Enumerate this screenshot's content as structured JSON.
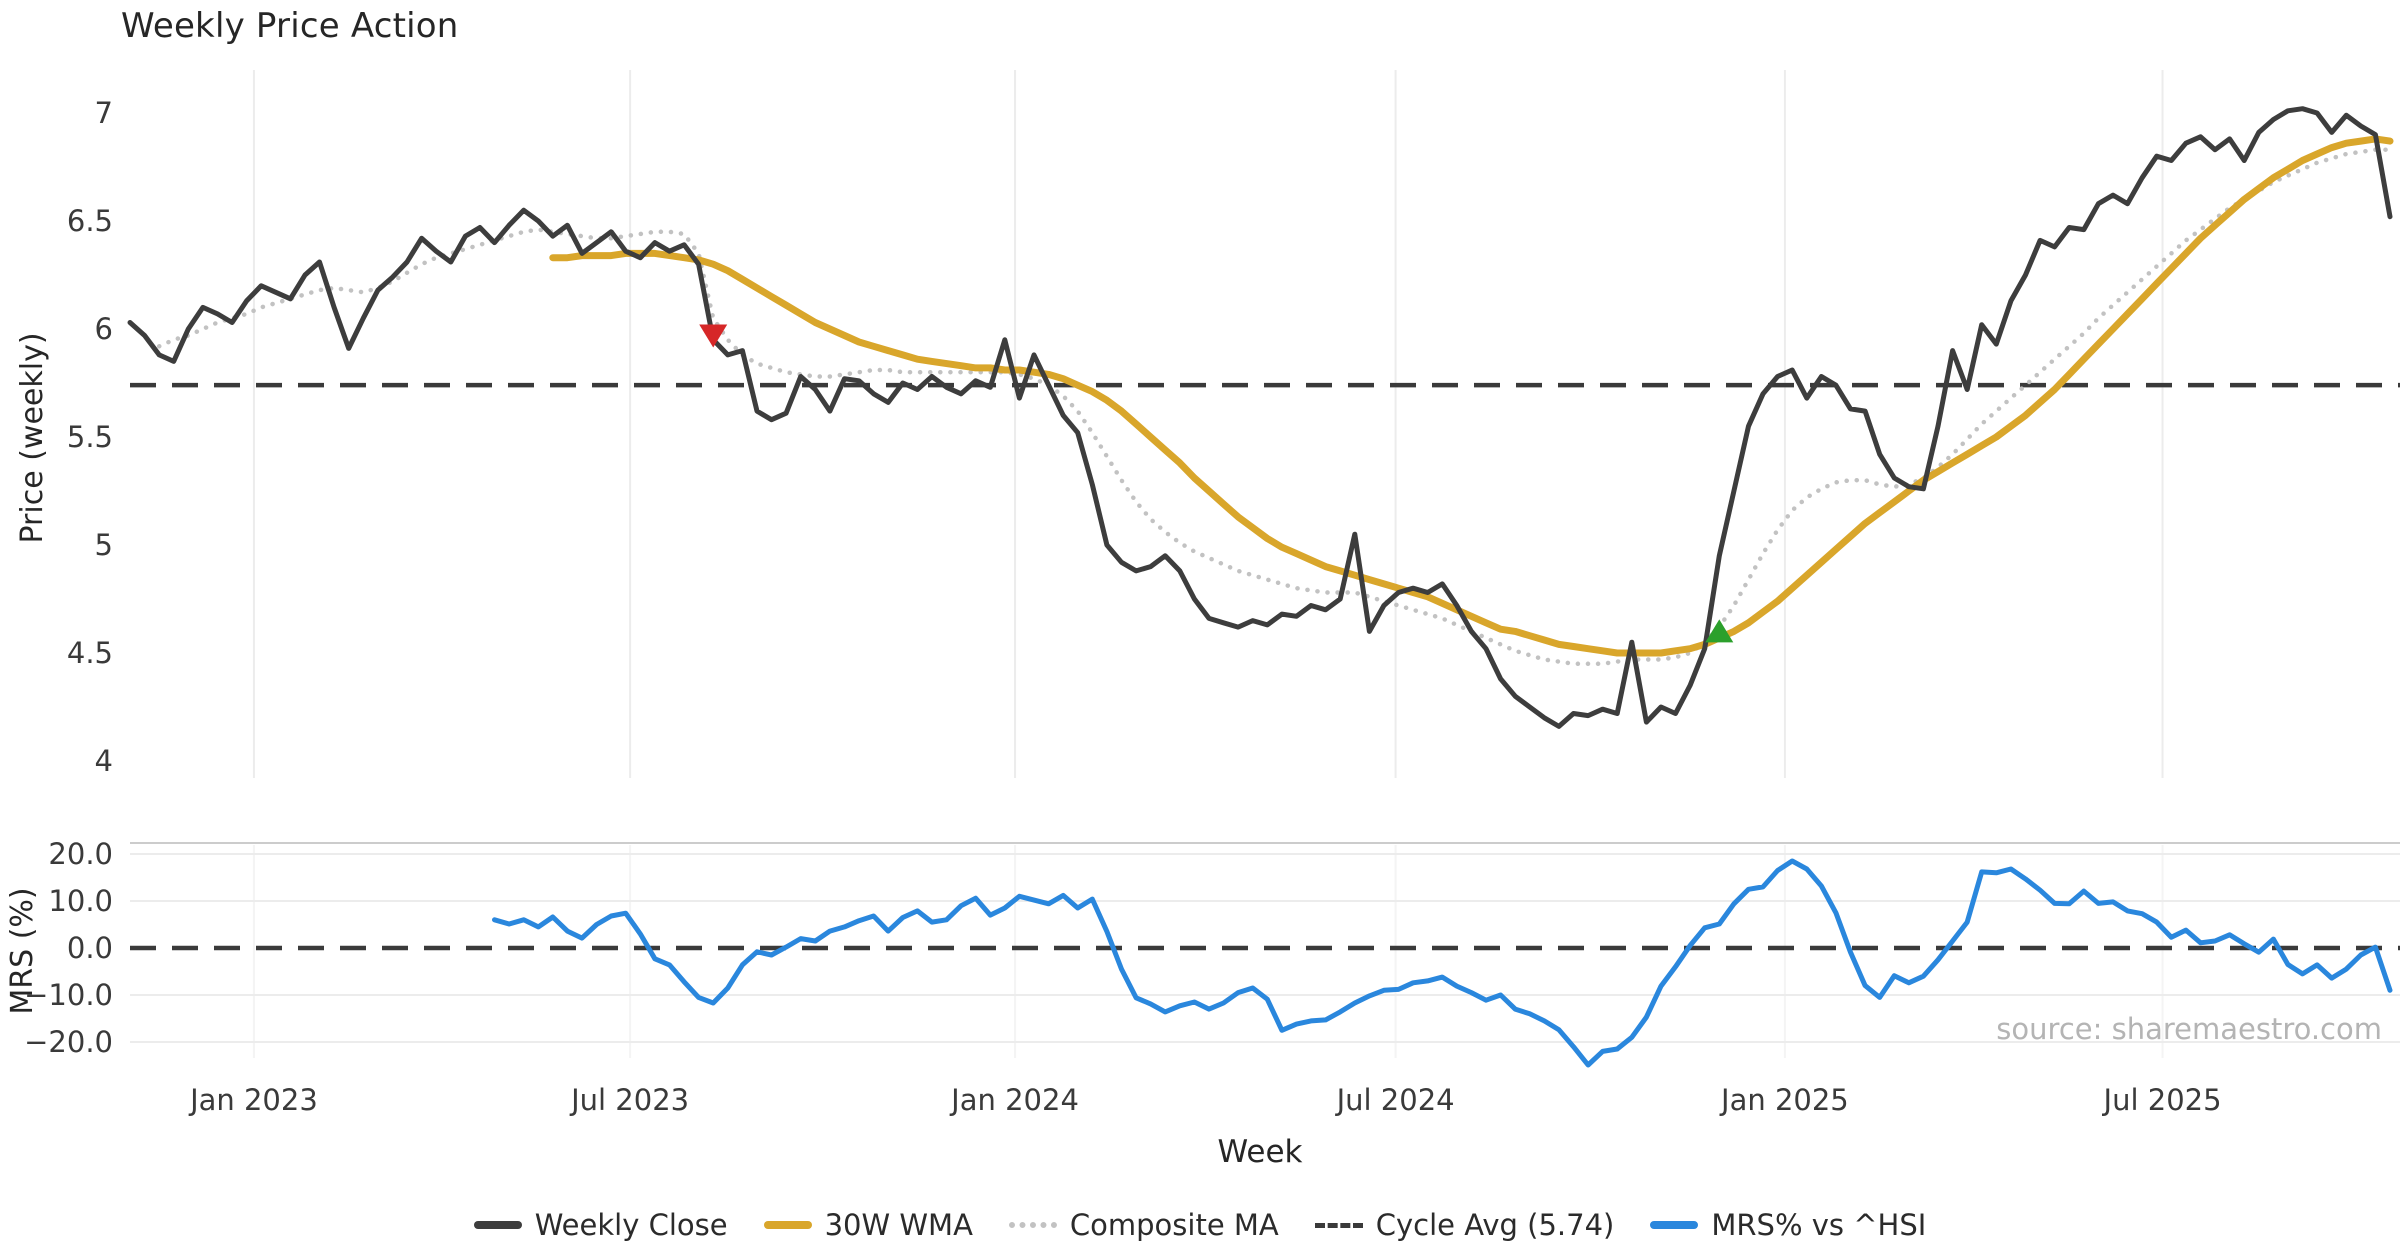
{
  "title": "Weekly Price Action",
  "source_note": "source: sharemaestro.com",
  "axes": {
    "x_label": "Week",
    "price_y_label": "Price (weekly)",
    "mrs_y_label": "MRS (%)"
  },
  "colors": {
    "close": "#3d3d3d",
    "wma": "#d9a62b",
    "composite": "#c2c2c2",
    "cycle_avg": "#3a3a3a",
    "mrs": "#2a87dd",
    "sell_marker": "#d62728",
    "buy_marker": "#2ca02c",
    "grid": "#ececec",
    "grid_faint": "#f4f4f4",
    "spine": "#cccccc",
    "tick_text": "#3a3a3a"
  },
  "legend": {
    "items": [
      {
        "label": "Weekly Close",
        "color": "#3d3d3d",
        "style": "solid"
      },
      {
        "label": "30W WMA",
        "color": "#d9a62b",
        "style": "solid"
      },
      {
        "label": "Composite MA",
        "color": "#c2c2c2",
        "style": "dotted"
      },
      {
        "label": "Cycle Avg (5.74)",
        "color": "#3a3a3a",
        "style": "dashed"
      },
      {
        "label": "MRS% vs ^HSI",
        "color": "#2a87dd",
        "style": "solid"
      }
    ]
  },
  "weeks_total": 156,
  "x_ticks": [
    {
      "week": 8.5,
      "label": "Jan 2023"
    },
    {
      "week": 34.3,
      "label": "Jul 2023"
    },
    {
      "week": 60.7,
      "label": "Jan 2024"
    },
    {
      "week": 86.8,
      "label": "Jul 2024"
    },
    {
      "week": 113.5,
      "label": "Jan 2025"
    },
    {
      "week": 139.4,
      "label": "Jul 2025"
    }
  ],
  "chart_data": [
    {
      "type": "line",
      "panel": "price",
      "title": "Weekly Price Action",
      "xlabel": "Week",
      "ylabel": "Price (weekly)",
      "ylim": [
        3.95,
        7.15
      ],
      "grid": "vertical-only",
      "y_ticks": [
        {
          "v": 4,
          "label": "4"
        },
        {
          "v": 4.5,
          "label": "4.5"
        },
        {
          "v": 5,
          "label": "5"
        },
        {
          "v": 5.5,
          "label": "5.5"
        },
        {
          "v": 6,
          "label": "6"
        },
        {
          "v": 6.5,
          "label": "6.5"
        },
        {
          "v": 7,
          "label": "7"
        }
      ],
      "cycle_avg": 5.74,
      "series": [
        {
          "name": "Weekly Close",
          "style": "solid",
          "color": "#3d3d3d",
          "width": 5,
          "start_week": 0,
          "values": [
            6.03,
            5.97,
            5.88,
            5.85,
            6.0,
            6.1,
            6.07,
            6.03,
            6.13,
            6.2,
            6.17,
            6.14,
            6.25,
            6.31,
            6.1,
            5.91,
            6.05,
            6.18,
            6.24,
            6.31,
            6.42,
            6.36,
            6.31,
            6.43,
            6.47,
            6.4,
            6.48,
            6.55,
            6.5,
            6.43,
            6.48,
            6.35,
            6.4,
            6.45,
            6.36,
            6.33,
            6.4,
            6.36,
            6.39,
            6.3,
            5.95,
            5.88,
            5.9,
            5.62,
            5.58,
            5.61,
            5.78,
            5.72,
            5.62,
            5.77,
            5.76,
            5.7,
            5.66,
            5.75,
            5.72,
            5.78,
            5.73,
            5.7,
            5.76,
            5.73,
            5.95,
            5.68,
            5.88,
            5.74,
            5.6,
            5.52,
            5.28,
            5.0,
            4.92,
            4.88,
            4.9,
            4.95,
            4.88,
            4.75,
            4.66,
            4.64,
            4.62,
            4.65,
            4.63,
            4.68,
            4.67,
            4.72,
            4.7,
            4.75,
            5.05,
            4.6,
            4.72,
            4.78,
            4.8,
            4.78,
            4.82,
            4.72,
            4.6,
            4.52,
            4.38,
            4.3,
            4.25,
            4.2,
            4.16,
            4.22,
            4.21,
            4.24,
            4.22,
            4.55,
            4.18,
            4.25,
            4.22,
            4.35,
            4.52,
            4.95,
            5.25,
            5.55,
            5.7,
            5.78,
            5.81,
            5.68,
            5.78,
            5.74,
            5.63,
            5.62,
            5.42,
            5.31,
            5.27,
            5.26,
            5.55,
            5.9,
            5.72,
            6.02,
            5.93,
            6.13,
            6.25,
            6.41,
            6.38,
            6.47,
            6.46,
            6.58,
            6.62,
            6.58,
            6.7,
            6.8,
            6.78,
            6.86,
            6.89,
            6.83,
            6.88,
            6.78,
            6.91,
            6.97,
            7.01,
            7.02,
            7.0,
            6.91,
            6.99,
            6.94,
            6.9,
            6.52
          ]
        },
        {
          "name": "30W WMA",
          "style": "solid",
          "color": "#d9a62b",
          "width": 7,
          "start_week": 29,
          "values": [
            6.33,
            6.33,
            6.34,
            6.34,
            6.34,
            6.35,
            6.35,
            6.35,
            6.34,
            6.33,
            6.32,
            6.3,
            6.27,
            6.23,
            6.19,
            6.15,
            6.11,
            6.07,
            6.03,
            6.0,
            5.97,
            5.94,
            5.92,
            5.9,
            5.88,
            5.86,
            5.85,
            5.84,
            5.83,
            5.82,
            5.82,
            5.81,
            5.81,
            5.8,
            5.79,
            5.77,
            5.74,
            5.71,
            5.67,
            5.62,
            5.56,
            5.5,
            5.44,
            5.38,
            5.31,
            5.25,
            5.19,
            5.13,
            5.08,
            5.03,
            4.99,
            4.96,
            4.93,
            4.9,
            4.88,
            4.86,
            4.84,
            4.82,
            4.8,
            4.78,
            4.76,
            4.73,
            4.7,
            4.67,
            4.64,
            4.61,
            4.6,
            4.58,
            4.56,
            4.54,
            4.53,
            4.52,
            4.51,
            4.5,
            4.5,
            4.5,
            4.5,
            4.51,
            4.52,
            4.54,
            4.57,
            4.6,
            4.64,
            4.69,
            4.74,
            4.8,
            4.86,
            4.92,
            4.98,
            5.04,
            5.1,
            5.15,
            5.2,
            5.25,
            5.3,
            5.34,
            5.38,
            5.42,
            5.46,
            5.5,
            5.55,
            5.6,
            5.66,
            5.72,
            5.79,
            5.86,
            5.93,
            6.0,
            6.07,
            6.14,
            6.21,
            6.28,
            6.35,
            6.42,
            6.48,
            6.54,
            6.6,
            6.65,
            6.7,
            6.74,
            6.78,
            6.81,
            6.84,
            6.86,
            6.87,
            6.88,
            6.87
          ]
        },
        {
          "name": "Composite MA",
          "style": "dotted",
          "color": "#c2c2c2",
          "width": 4.5,
          "start_week": 2,
          "values": [
            5.92,
            5.95,
            5.97,
            6.0,
            6.03,
            6.05,
            6.07,
            6.1,
            6.12,
            6.14,
            6.16,
            6.18,
            6.19,
            6.18,
            6.17,
            6.19,
            6.22,
            6.26,
            6.3,
            6.33,
            6.35,
            6.37,
            6.39,
            6.41,
            6.43,
            6.45,
            6.46,
            6.45,
            6.44,
            6.43,
            6.42,
            6.42,
            6.43,
            6.44,
            6.45,
            6.45,
            6.44,
            6.35,
            6.05,
            5.95,
            5.88,
            5.84,
            5.82,
            5.8,
            5.79,
            5.78,
            5.78,
            5.79,
            5.8,
            5.81,
            5.81,
            5.8,
            5.8,
            5.8,
            5.8,
            5.8,
            5.8,
            5.8,
            5.8,
            5.79,
            5.77,
            5.74,
            5.69,
            5.62,
            5.52,
            5.41,
            5.3,
            5.2,
            5.12,
            5.06,
            5.01,
            4.97,
            4.94,
            4.91,
            4.88,
            4.86,
            4.84,
            4.82,
            4.8,
            4.79,
            4.78,
            4.78,
            4.78,
            4.76,
            4.74,
            4.72,
            4.7,
            4.68,
            4.66,
            4.63,
            4.6,
            4.57,
            4.54,
            4.51,
            4.49,
            4.47,
            4.46,
            4.45,
            4.45,
            4.45,
            4.46,
            4.47,
            4.47,
            4.47,
            4.48,
            4.5,
            4.55,
            4.62,
            4.72,
            4.84,
            4.96,
            5.07,
            5.16,
            5.22,
            5.26,
            5.29,
            5.3,
            5.3,
            5.28,
            5.27,
            5.28,
            5.31,
            5.36,
            5.42,
            5.49,
            5.56,
            5.62,
            5.68,
            5.74,
            5.8,
            5.86,
            5.92,
            5.98,
            6.05,
            6.11,
            6.17,
            6.23,
            6.29,
            6.35,
            6.41,
            6.46,
            6.51,
            6.56,
            6.6,
            6.64,
            6.68,
            6.71,
            6.74,
            6.77,
            6.79,
            6.81,
            6.82,
            6.83,
            6.83
          ]
        }
      ],
      "markers": [
        {
          "name": "sell-signal",
          "shape": "triangle-down",
          "color": "#d62728",
          "week": 40,
          "value": 5.97
        },
        {
          "name": "buy-signal",
          "shape": "triangle-up",
          "color": "#2ca02c",
          "week": 109,
          "value": 4.6
        }
      ]
    },
    {
      "type": "line",
      "panel": "mrs",
      "ylabel": "MRS (%)",
      "ylim": [
        -27,
        22
      ],
      "zero_line": 0,
      "y_ticks": [
        {
          "v": 20,
          "label": "20.0"
        },
        {
          "v": 10,
          "label": "10.0"
        },
        {
          "v": 0,
          "label": "0.0"
        },
        {
          "v": -10,
          "label": "−10.0"
        },
        {
          "v": -20,
          "label": "−20.0"
        }
      ],
      "series": [
        {
          "name": "MRS% vs ^HSI",
          "style": "solid",
          "color": "#2a87dd",
          "width": 5,
          "start_week": 25,
          "values": [
            6.0,
            5.1,
            6.0,
            4.5,
            6.6,
            3.6,
            2.1,
            5.0,
            6.8,
            7.4,
            3.0,
            -2.3,
            -3.6,
            -7.2,
            -10.5,
            -11.7,
            -8.5,
            -3.6,
            -0.8,
            -1.5,
            0.2,
            2.0,
            1.5,
            3.6,
            4.5,
            5.8,
            6.8,
            3.6,
            6.5,
            7.9,
            5.5,
            6.0,
            9.0,
            10.6,
            7.0,
            8.5,
            11.0,
            10.2,
            9.4,
            11.2,
            8.5,
            10.4,
            3.5,
            -4.5,
            -10.6,
            -11.9,
            -13.6,
            -12.3,
            -11.5,
            -13.0,
            -11.7,
            -9.5,
            -8.5,
            -10.9,
            -17.5,
            -16.2,
            -15.5,
            -15.3,
            -13.6,
            -11.7,
            -10.2,
            -9.0,
            -8.8,
            -7.4,
            -7.0,
            -6.2,
            -8.1,
            -9.5,
            -11.1,
            -10.0,
            -13.0,
            -14.0,
            -15.5,
            -17.4,
            -21.0,
            -24.9,
            -22.0,
            -21.5,
            -19.0,
            -14.7,
            -8.1,
            -4.0,
            0.5,
            4.3,
            5.1,
            9.4,
            12.5,
            13.0,
            16.5,
            18.5,
            16.8,
            13.2,
            7.5,
            -0.9,
            -8.0,
            -10.5,
            -5.9,
            -7.4,
            -6.0,
            -2.5,
            1.5,
            5.5,
            16.2,
            16.0,
            16.8,
            14.7,
            12.3,
            9.5,
            9.4,
            12.1,
            9.5,
            9.8,
            7.9,
            7.3,
            5.5,
            2.3,
            3.8,
            1.1,
            1.5,
            2.8,
            0.9,
            -0.9,
            1.9,
            -3.5,
            -5.5,
            -3.6,
            -6.4,
            -4.5,
            -1.5,
            0.2,
            -9.0
          ]
        }
      ]
    }
  ]
}
